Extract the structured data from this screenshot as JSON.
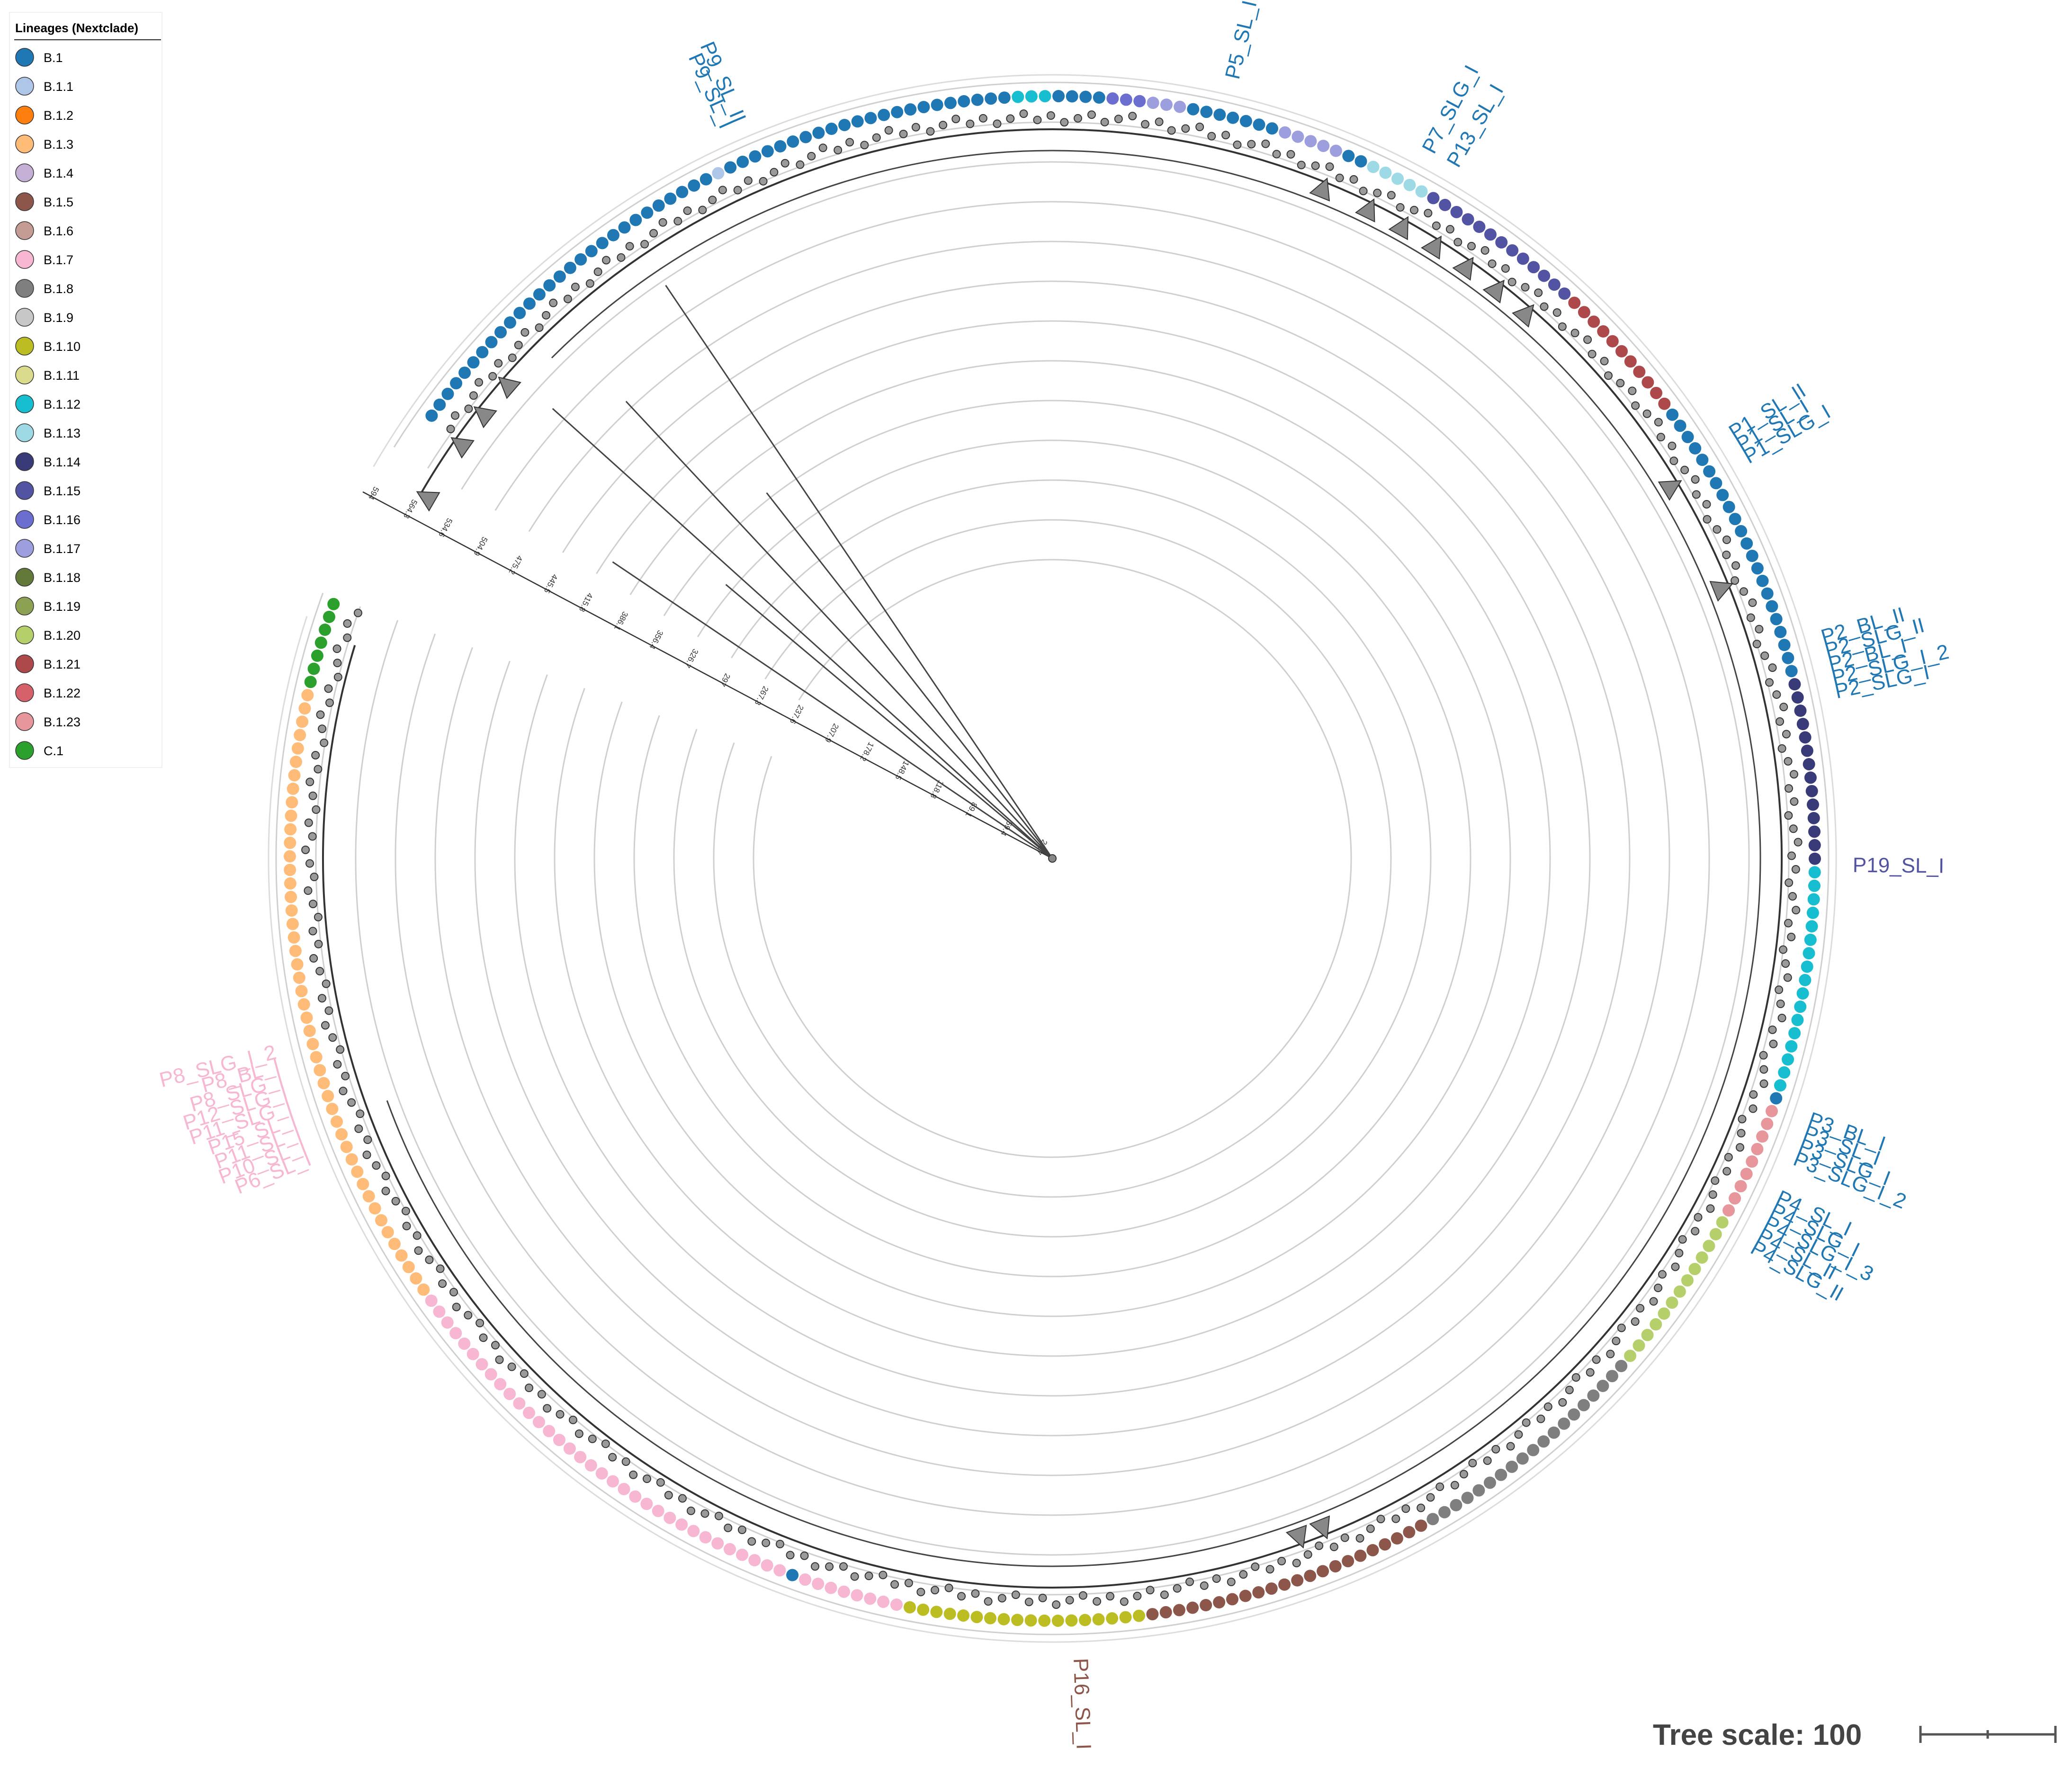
{
  "legend": {
    "title": "Lineages (Nextclade)",
    "items": [
      {
        "label": "B.1",
        "color": "#1f77b4"
      },
      {
        "label": "B.1.1",
        "color": "#aec7e8"
      },
      {
        "label": "B.1.2",
        "color": "#ff7f0e"
      },
      {
        "label": "B.1.3",
        "color": "#ffbb78"
      },
      {
        "label": "B.1.4",
        "color": "#c5b0d5"
      },
      {
        "label": "B.1.5",
        "color": "#8c564b"
      },
      {
        "label": "B.1.6",
        "color": "#c49c94"
      },
      {
        "label": "B.1.7",
        "color": "#f7b6d2"
      },
      {
        "label": "B.1.8",
        "color": "#7f7f7f"
      },
      {
        "label": "B.1.9",
        "color": "#c7c7c7"
      },
      {
        "label": "B.1.10",
        "color": "#bcbd22"
      },
      {
        "label": "B.1.11",
        "color": "#dbdb8d"
      },
      {
        "label": "B.1.12",
        "color": "#17becf"
      },
      {
        "label": "B.1.13",
        "color": "#9edae5"
      },
      {
        "label": "B.1.14",
        "color": "#393b79"
      },
      {
        "label": "B.1.15",
        "color": "#5254a3"
      },
      {
        "label": "B.1.16",
        "color": "#6b6ecf"
      },
      {
        "label": "B.1.17",
        "color": "#9c9ede"
      },
      {
        "label": "B.1.18",
        "color": "#637939"
      },
      {
        "label": "B.1.19",
        "color": "#8ca252"
      },
      {
        "label": "B.1.20",
        "color": "#b5cf6b"
      },
      {
        "label": "B.1.21",
        "color": "#ad494a"
      },
      {
        "label": "B.1.22",
        "color": "#d6616b"
      },
      {
        "label": "B.1.23",
        "color": "#e7969c"
      },
      {
        "label": "C.1",
        "color": "#2ca02c"
      }
    ]
  },
  "axis": {
    "tick_labels": [
      "29.7",
      "59.4",
      "89.1",
      "118.8",
      "148.5",
      "178.2",
      "207.9",
      "237.6",
      "267.3",
      "297",
      "326.7",
      "356.4",
      "386.1",
      "415.8",
      "445.5",
      "475.2",
      "504.9",
      "534.6",
      "564.3",
      "594"
    ]
  },
  "tree_scale": {
    "label": "Tree scale: 100"
  },
  "tips": {
    "ring": [
      {
        "lineage": "C.1",
        "count": 7
      },
      {
        "lineage": "B.1.3",
        "count": 47
      },
      {
        "lineage": "B.1.7",
        "count": 34
      },
      {
        "lineage": "B.1",
        "count": 1
      },
      {
        "lineage": "B.1.7",
        "count": 8
      },
      {
        "lineage": "B.1.10",
        "count": 18
      },
      {
        "lineage": "B.1.5",
        "count": 22
      },
      {
        "lineage": "B.1.8",
        "count": 19
      },
      {
        "lineage": "B.1.20",
        "count": 6
      },
      {
        "lineage": "B.1.20",
        "count": 7
      },
      {
        "lineage": "B.1.23",
        "count": 9
      },
      {
        "lineage": "B.1",
        "count": 1
      },
      {
        "lineage": "B.1.12",
        "count": 17
      },
      {
        "lineage": "B.1.14",
        "count": 14
      },
      {
        "lineage": "B.1",
        "count": 22
      },
      {
        "lineage": "B.1.21",
        "count": 11
      },
      {
        "lineage": "B.1.15",
        "count": 13
      },
      {
        "lineage": "B.1.13",
        "count": 5
      },
      {
        "lineage": "B.1",
        "count": 2
      },
      {
        "lineage": "B.1.17",
        "count": 5
      },
      {
        "lineage": "B.1",
        "count": 7
      },
      {
        "lineage": "B.1.17",
        "count": 3
      },
      {
        "lineage": "B.1.16",
        "count": 3
      },
      {
        "lineage": "B.1",
        "count": 4
      },
      {
        "lineage": "B.1.12",
        "count": 3
      },
      {
        "lineage": "B.1",
        "count": 22
      },
      {
        "lineage": "B.1.1",
        "count": 1
      },
      {
        "lineage": "B.1",
        "count": 28
      }
    ],
    "labels": [
      {
        "text": "P9_SL_I",
        "color": "#1f77b4"
      },
      {
        "text": "P9_SL_II",
        "color": "#1f77b4"
      },
      {
        "text": "P5_SL_I",
        "color": "#1f77b4"
      },
      {
        "text": "P7_SLG_I",
        "color": "#1f77b4"
      },
      {
        "text": "P13_SL_I",
        "color": "#1f77b4"
      },
      {
        "text": "P1_SL_II",
        "color": "#1f77b4"
      },
      {
        "text": "P1_SL_I",
        "color": "#1f77b4"
      },
      {
        "text": "P1_SLG_I",
        "color": "#1f77b4"
      },
      {
        "text": "P2_BL_II",
        "color": "#1f77b4"
      },
      {
        "text": "P2_SLG_II",
        "color": "#1f77b4"
      },
      {
        "text": "P2_BL_I",
        "color": "#1f77b4"
      },
      {
        "text": "P2_SLG_I_2",
        "color": "#1f77b4"
      },
      {
        "text": "P2_SLG_I",
        "color": "#1f77b4"
      },
      {
        "text": "P19_SL_I",
        "color": "#5254a3"
      },
      {
        "text": "P3_BL_I",
        "color": "#1f77b4"
      },
      {
        "text": "P3_SL_I",
        "color": "#1f77b4"
      },
      {
        "text": "P3_SLG_I",
        "color": "#1f77b4"
      },
      {
        "text": "P3_SLG_I_2",
        "color": "#1f77b4"
      },
      {
        "text": "P4_SL_I",
        "color": "#1f77b4"
      },
      {
        "text": "P4_SLG_I",
        "color": "#1f77b4"
      },
      {
        "text": "P4_SLG_I_3",
        "color": "#1f77b4"
      },
      {
        "text": "P4_SL_II",
        "color": "#1f77b4"
      },
      {
        "text": "P4_SLG_II",
        "color": "#1f77b4"
      },
      {
        "text": "P16_SL_I",
        "color": "#8c564b"
      },
      {
        "text": "P6_SL_I",
        "color": "#f7b6d2"
      },
      {
        "text": "P10_SL_I",
        "color": "#f7b6d2"
      },
      {
        "text": "P11_SL_I",
        "color": "#f7b6d2"
      },
      {
        "text": "P15_SL_I",
        "color": "#f7b6d2"
      },
      {
        "text": "P11_SLG_I",
        "color": "#f7b6d2"
      },
      {
        "text": "P12_SLG_I",
        "color": "#f7b6d2"
      },
      {
        "text": "P8_SLG_I",
        "color": "#f7b6d2"
      },
      {
        "text": "P8_BL_I",
        "color": "#f7b6d2"
      },
      {
        "text": "P8_SLG_I_2",
        "color": "#f7b6d2"
      }
    ]
  }
}
